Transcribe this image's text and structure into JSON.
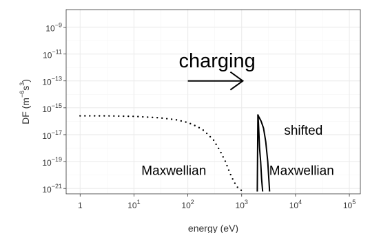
{
  "chart_data": {
    "type": "line",
    "title": "",
    "xlabel": "energy (eV)",
    "ylabel": {
      "base": "DF (m",
      "exp1": "−6",
      "mid": "s",
      "exp2": "3",
      "end": ")"
    },
    "x_scale": "log",
    "y_scale": "log",
    "xlim": [
      0.55,
      160000
    ],
    "ylim": [
      4e-22,
      2e-08
    ],
    "x_ticks": [
      {
        "value": 1,
        "base": "1",
        "exp": ""
      },
      {
        "value": 10,
        "base": "10",
        "exp": "1"
      },
      {
        "value": 100,
        "base": "10",
        "exp": "2"
      },
      {
        "value": 1000,
        "base": "10",
        "exp": "3"
      },
      {
        "value": 10000,
        "base": "10",
        "exp": "4"
      },
      {
        "value": 100000,
        "base": "10",
        "exp": "5"
      }
    ],
    "y_ticks": [
      {
        "value": 1e-09,
        "base": "10",
        "exp": "−9"
      },
      {
        "value": 1e-11,
        "base": "10",
        "exp": "−11"
      },
      {
        "value": 1e-13,
        "base": "10",
        "exp": "−13"
      },
      {
        "value": 1e-15,
        "base": "10",
        "exp": "−15"
      },
      {
        "value": 1e-17,
        "base": "10",
        "exp": "−17"
      },
      {
        "value": 1e-19,
        "base": "10",
        "exp": "−19"
      },
      {
        "value": 1e-21,
        "base": "10",
        "exp": "−21"
      }
    ],
    "grid": true,
    "legend": "none",
    "series": [
      {
        "style": "dotted",
        "color": "#000000",
        "x": [
          1,
          3,
          10,
          30,
          60,
          100,
          150,
          200,
          300,
          400,
          500,
          600,
          700,
          800,
          900,
          1000,
          1100
        ],
        "y": [
          2.5e-16,
          2.5e-16,
          2.3e-16,
          1.8e-16,
          1.3e-16,
          8e-17,
          4e-17,
          2e-17,
          4e-18,
          6e-19,
          1e-19,
          1.5e-20,
          4e-21,
          1.5e-21,
          9e-22,
          7e-22,
          6e-22
        ]
      },
      {
        "style": "solid",
        "color": "#000000",
        "x": [
          1950,
          2000,
          2100,
          2300,
          2550,
          2800,
          3050,
          3300
        ],
        "y": [
          6e-22,
          3e-16,
          2e-16,
          1e-16,
          3e-17,
          3e-18,
          1e-19,
          6e-22
        ]
      },
      {
        "style": "solid",
        "color": "#000000",
        "x": [
          2000,
          2050,
          2150,
          2250,
          2350,
          2450
        ],
        "y": [
          3e-16,
          8e-17,
          1e-18,
          1e-19,
          5e-21,
          6e-22
        ]
      }
    ],
    "annotations": [
      {
        "id": "charging",
        "text": "charging",
        "x": 350,
        "y": 1e-12,
        "size": "big"
      },
      {
        "id": "maxwellian",
        "text": "Maxwellian",
        "x": 55,
        "y": 1e-20,
        "size": "normal"
      },
      {
        "id": "shifted",
        "text": "shifted",
        "x": 14000,
        "y": 1e-17,
        "size": "normal"
      },
      {
        "id": "shifted-maxwellian",
        "text": "Maxwellian",
        "x": 13000,
        "y": 1e-20,
        "size": "normal"
      }
    ],
    "arrow": {
      "from": [
        100,
        1e-13
      ],
      "to": [
        1050,
        1e-13
      ],
      "direction": "right"
    },
    "colors": {
      "panel": "#ffffff",
      "grid_major": "#ebebeb",
      "grid_minor": "#f5f5f5",
      "border": "#333333",
      "series": "#000000"
    }
  }
}
